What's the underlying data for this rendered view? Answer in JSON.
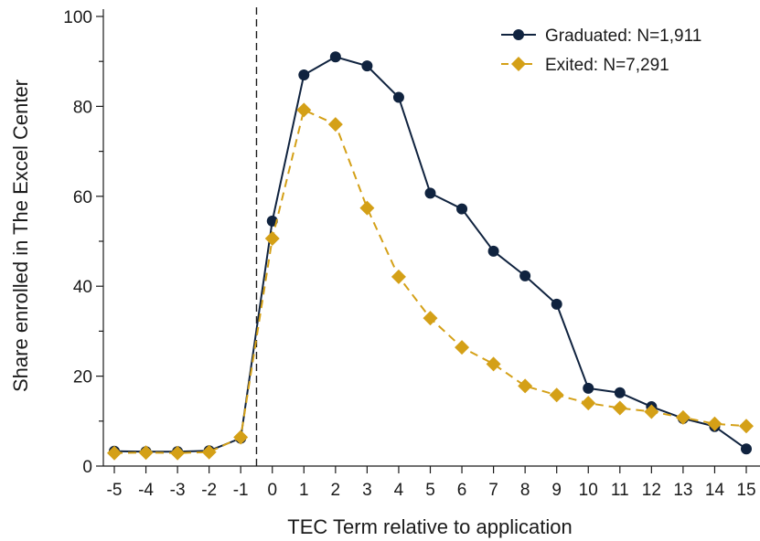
{
  "chart_data": {
    "type": "line",
    "title": "",
    "xlabel": "TEC Term relative to application",
    "ylabel": "Share enrolled in The Excel Center",
    "x": [
      -5,
      -4,
      -3,
      -2,
      -1,
      0,
      1,
      2,
      3,
      4,
      5,
      6,
      7,
      8,
      9,
      10,
      11,
      12,
      13,
      14,
      15
    ],
    "xlim": [
      -5,
      15
    ],
    "ylim": [
      0,
      100
    ],
    "yticks": [
      0,
      20,
      40,
      60,
      80,
      100
    ],
    "yminor_ticks": [
      10,
      30,
      50,
      70,
      90
    ],
    "reference_line": {
      "x": -0.5,
      "style": "dashed"
    },
    "grid": false,
    "legend_position": "top-right",
    "series": [
      {
        "name": "Graduated: N=1,911",
        "color": "#10233f",
        "marker": "circle",
        "line_style": "solid",
        "values": [
          3.3,
          3.2,
          3.2,
          3.4,
          6.2,
          54.5,
          87,
          91,
          89,
          82,
          60.7,
          57.2,
          47.8,
          42.3,
          36,
          17.3,
          16.3,
          13.2,
          10.6,
          8.8,
          3.8
        ]
      },
      {
        "name": "Exited: N=7,291",
        "color": "#d4a017",
        "marker": "diamond",
        "line_style": "dashed",
        "values": [
          2.9,
          3.0,
          2.9,
          3.1,
          6.4,
          50.6,
          79.2,
          76,
          57.4,
          42.1,
          32.9,
          26.4,
          22.7,
          17.8,
          15.8,
          14,
          12.9,
          12.1,
          10.8,
          9.4,
          8.9
        ]
      }
    ]
  }
}
